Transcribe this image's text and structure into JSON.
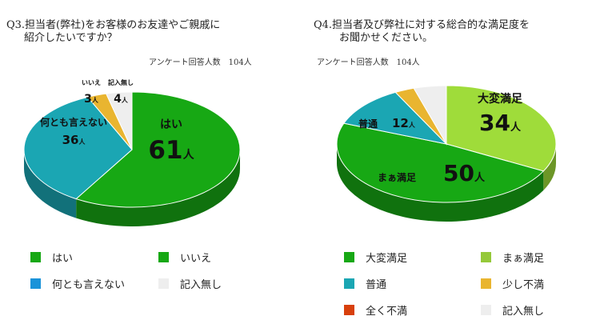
{
  "chart_data": [
    {
      "type": "pie",
      "title_line1": "Q3.担当者(弊社)をお客様のお友達やご親戚に",
      "title_line2": "紹介したいですか？",
      "subtitle": "アンケート回答人数　104人",
      "unit": "人",
      "slices": [
        {
          "label": "はい",
          "value": 61,
          "color": "#17a814"
        },
        {
          "label": "何とも言えない",
          "value": 36,
          "color": "#1ba6b3"
        },
        {
          "label": "いいえ",
          "value": 3,
          "color": "#e9b530"
        },
        {
          "label": "記入無し",
          "value": 4,
          "color": "#eeeeee"
        }
      ],
      "legend": [
        {
          "label": "はい",
          "color": "#17a814"
        },
        {
          "label": "いいえ",
          "color": "#17a814"
        },
        {
          "label": "何とも言えない",
          "color": "#1a93d9"
        },
        {
          "label": "記入無し",
          "color": "#eeeeee"
        }
      ]
    },
    {
      "type": "pie",
      "title_line1": "Q4.担当者及び弊社に対する総合的な満足度を",
      "title_line2": "お聞かせください。",
      "subtitle": "アンケート回答人数　104人",
      "unit": "人",
      "slices": [
        {
          "label": "大変満足",
          "value": 34,
          "color": "#9fdc3a"
        },
        {
          "label": "まぁ満足",
          "value": 50,
          "color": "#17a814"
        },
        {
          "label": "普通",
          "value": 12,
          "color": "#1ba6b3"
        },
        {
          "label": "少し不満",
          "value": 3,
          "color": "#e9b530"
        },
        {
          "label": "記入無し",
          "value": 5,
          "color": "#eeeeee"
        }
      ],
      "legend": [
        {
          "label": "大変満足",
          "color": "#17a814"
        },
        {
          "label": "まぁ満足",
          "color": "#95c93a"
        },
        {
          "label": "普通",
          "color": "#1ba6b3"
        },
        {
          "label": "少し不満",
          "color": "#e9b530"
        },
        {
          "label": "全く不満",
          "color": "#d8400c"
        },
        {
          "label": "記入無し",
          "color": "#eeeeee"
        }
      ]
    }
  ]
}
